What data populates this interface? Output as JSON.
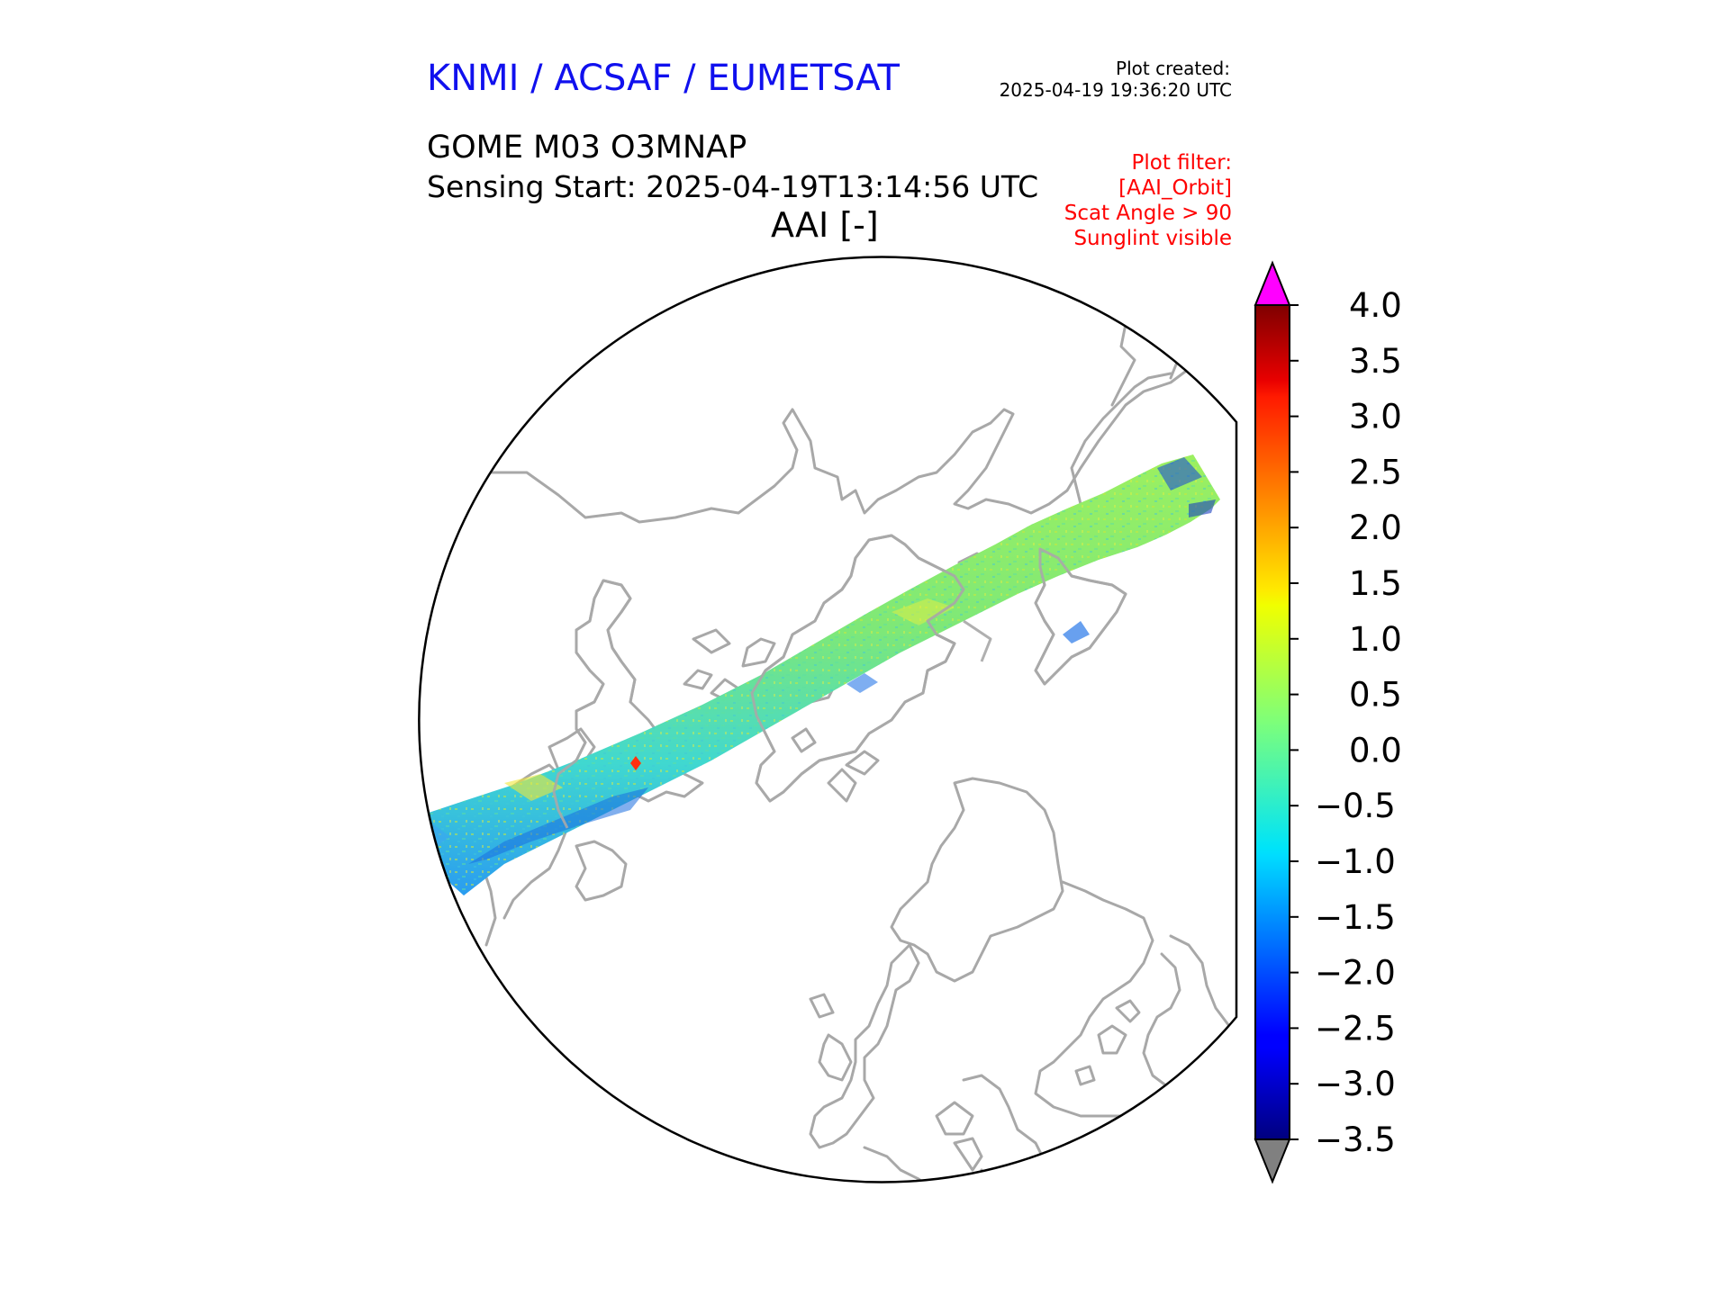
{
  "header": {
    "organizations": "KNMI / ACSAF / EUMETSAT",
    "created_label": "Plot created:",
    "created_time": "2025-04-19 19:36:20 UTC"
  },
  "product": {
    "name": "GOME M03 O3MNAP",
    "sensing_start": "Sensing Start: 2025-04-19T13:14:56 UTC",
    "variable_title": "AAI [-]"
  },
  "filter": {
    "title": "Plot filter:",
    "lines": [
      "[AAI_Orbit]",
      "Scat Angle > 90",
      "Sunglint visible"
    ]
  },
  "colorbar": {
    "min": -3.5,
    "max": 4.0,
    "tick_labels": [
      "4.0",
      "3.5",
      "3.0",
      "2.5",
      "2.0",
      "1.5",
      "1.0",
      "0.5",
      "0.0",
      "−0.5",
      "−1.0",
      "−1.5",
      "−2.0",
      "−2.5",
      "−3.0",
      "−3.5"
    ],
    "over_color": "#ff00ff",
    "under_color": "#808080",
    "colormap": "jet"
  },
  "colors": {
    "coastline": "#a8a8a8",
    "header": "#1010ee",
    "filter_text": "#ff0000"
  }
}
